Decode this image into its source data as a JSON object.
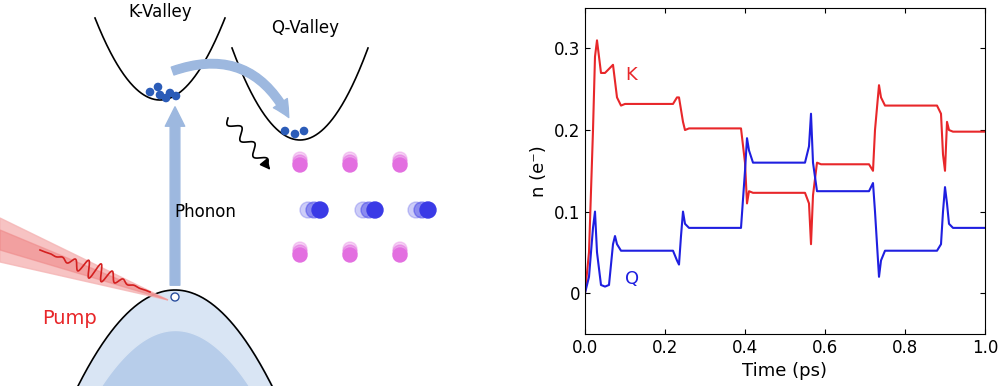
{
  "diagram": {
    "labels": {
      "k_valley": "K-Valley",
      "q_valley": "Q-Valley",
      "pump": "Pump",
      "phonon": "Phonon"
    }
  },
  "chart_data": {
    "type": "line",
    "xlabel": "Time (ps)",
    "ylabel": "n (e⁻)",
    "x": [
      0,
      0.01,
      0.02,
      0.025,
      0.03,
      0.04,
      0.05,
      0.06,
      0.07,
      0.075,
      0.08,
      0.09,
      0.1,
      0.15,
      0.22,
      0.23,
      0.235,
      0.24,
      0.245,
      0.25,
      0.26,
      0.3,
      0.39,
      0.4,
      0.405,
      0.41,
      0.42,
      0.43,
      0.5,
      0.55,
      0.56,
      0.565,
      0.57,
      0.58,
      0.59,
      0.65,
      0.71,
      0.72,
      0.725,
      0.735,
      0.74,
      0.75,
      0.8,
      0.88,
      0.89,
      0.895,
      0.9,
      0.905,
      0.91,
      0.92,
      0.95,
      1.0
    ],
    "series": [
      {
        "name": "K",
        "color": "#e8272a",
        "values": [
          0,
          0.05,
          0.2,
          0.29,
          0.31,
          0.27,
          0.27,
          0.275,
          0.28,
          0.26,
          0.24,
          0.23,
          0.232,
          0.232,
          0.232,
          0.24,
          0.24,
          0.225,
          0.21,
          0.2,
          0.202,
          0.202,
          0.202,
          0.16,
          0.11,
          0.125,
          0.123,
          0.123,
          0.123,
          0.123,
          0.11,
          0.06,
          0.12,
          0.16,
          0.158,
          0.158,
          0.158,
          0.15,
          0.2,
          0.255,
          0.24,
          0.23,
          0.23,
          0.23,
          0.22,
          0.17,
          0.15,
          0.21,
          0.2,
          0.198,
          0.198,
          0.198
        ]
      },
      {
        "name": "Q",
        "color": "#1f1fe0",
        "values": [
          0,
          0.02,
          0.08,
          0.1,
          0.05,
          0.01,
          0.008,
          0.01,
          0.06,
          0.07,
          0.06,
          0.052,
          0.052,
          0.052,
          0.052,
          0.04,
          0.035,
          0.07,
          0.1,
          0.085,
          0.08,
          0.08,
          0.08,
          0.15,
          0.19,
          0.175,
          0.16,
          0.16,
          0.16,
          0.16,
          0.18,
          0.22,
          0.16,
          0.125,
          0.125,
          0.125,
          0.125,
          0.135,
          0.1,
          0.02,
          0.04,
          0.052,
          0.052,
          0.052,
          0.06,
          0.1,
          0.13,
          0.11,
          0.085,
          0.08,
          0.08,
          0.08
        ]
      }
    ],
    "xlim": [
      0,
      1.0
    ],
    "ylim": [
      -0.05,
      0.35
    ],
    "xticks": [
      {
        "value": 0,
        "label": "0.0"
      },
      0.2,
      0.4,
      0.6,
      0.8,
      {
        "value": 1.0,
        "label": "1.0"
      }
    ],
    "yticks": [
      0,
      0.1,
      0.2,
      0.3
    ]
  }
}
